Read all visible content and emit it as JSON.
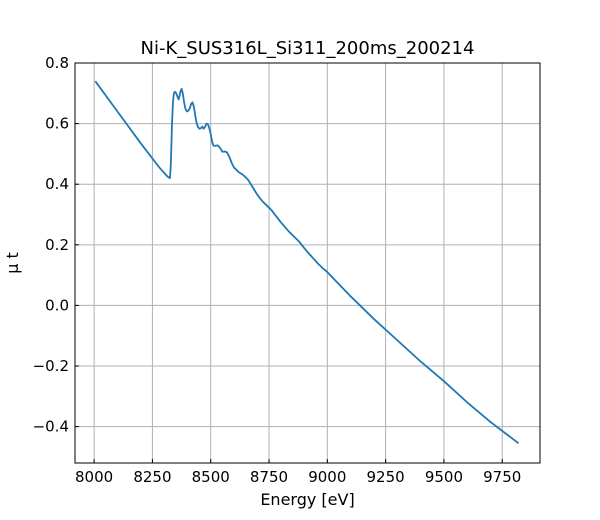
{
  "chart_data": {
    "type": "line",
    "title": "Ni-K_SUS316L_Si311_200ms_200214",
    "xlabel": "Energy [eV]",
    "ylabel": "μ t",
    "xlim": [
      7918,
      9912
    ],
    "ylim": [
      -0.52,
      0.8
    ],
    "grid": true,
    "x_ticks": [
      8000,
      8250,
      8500,
      8750,
      9000,
      9250,
      9500,
      9750
    ],
    "x_tick_labels": [
      "8000",
      "8250",
      "8500",
      "8750",
      "9000",
      "9250",
      "9500",
      "9750"
    ],
    "y_ticks": [
      -0.4,
      -0.2,
      0.0,
      0.2,
      0.4,
      0.6,
      0.8
    ],
    "y_tick_labels": [
      "−0.4",
      "−0.2",
      "0.0",
      "0.2",
      "0.4",
      "0.6",
      "0.8"
    ],
    "series": [
      {
        "color": "#1f77b4",
        "x": [
          8005,
          8100,
          8200,
          8280,
          8315,
          8325,
          8328,
          8331,
          8334,
          8338,
          8342,
          8347,
          8352,
          8357,
          8362,
          8366,
          8370,
          8375,
          8380,
          8386,
          8392,
          8398,
          8404,
          8410,
          8416,
          8422,
          8428,
          8434,
          8440,
          8446,
          8452,
          8458,
          8464,
          8470,
          8476,
          8482,
          8488,
          8494,
          8500,
          8506,
          8512,
          8520,
          8530,
          8540,
          8550,
          8560,
          8570,
          8580,
          8590,
          8600,
          8620,
          8640,
          8660,
          8680,
          8700,
          8720,
          8740,
          8760,
          8780,
          8800,
          8820,
          8840,
          8860,
          8880,
          8900,
          8920,
          8940,
          8960,
          8980,
          9000,
          9050,
          9100,
          9200,
          9300,
          9400,
          9500,
          9600,
          9700,
          9820
        ],
        "y": [
          0.74,
          0.64,
          0.535,
          0.455,
          0.425,
          0.42,
          0.45,
          0.52,
          0.6,
          0.67,
          0.7,
          0.705,
          0.7,
          0.69,
          0.68,
          0.69,
          0.705,
          0.715,
          0.7,
          0.67,
          0.648,
          0.64,
          0.643,
          0.65,
          0.665,
          0.67,
          0.655,
          0.625,
          0.6,
          0.588,
          0.583,
          0.585,
          0.59,
          0.583,
          0.59,
          0.6,
          0.598,
          0.585,
          0.565,
          0.54,
          0.527,
          0.527,
          0.528,
          0.52,
          0.507,
          0.508,
          0.505,
          0.49,
          0.47,
          0.455,
          0.44,
          0.43,
          0.415,
          0.39,
          0.365,
          0.345,
          0.33,
          0.315,
          0.295,
          0.275,
          0.257,
          0.24,
          0.225,
          0.21,
          0.19,
          0.172,
          0.155,
          0.138,
          0.123,
          0.11,
          0.07,
          0.03,
          -0.045,
          -0.115,
          -0.185,
          -0.25,
          -0.32,
          -0.385,
          -0.455
        ]
      }
    ]
  }
}
